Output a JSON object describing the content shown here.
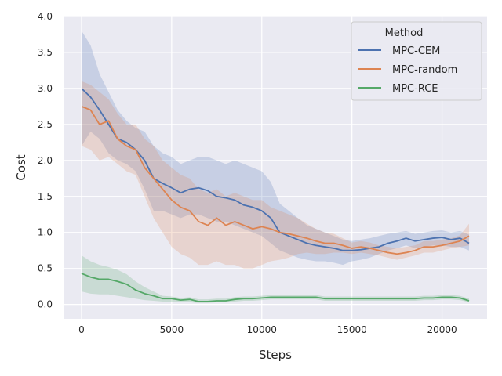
{
  "chart_data": {
    "type": "line",
    "xlabel": "Steps",
    "ylabel": "Cost",
    "xlim": [
      -1000,
      22500
    ],
    "ylim": [
      -0.2,
      4.0
    ],
    "xticks": [
      0,
      5000,
      10000,
      15000,
      20000
    ],
    "yticks": [
      0.0,
      0.5,
      1.0,
      1.5,
      2.0,
      2.5,
      3.0,
      3.5,
      4.0
    ],
    "xtick_labels": [
      "0",
      "5000",
      "10000",
      "15000",
      "20000"
    ],
    "ytick_labels": [
      "0.0",
      "0.5",
      "1.0",
      "1.5",
      "2.0",
      "2.5",
      "3.0",
      "3.5",
      "4.0"
    ],
    "grid": true,
    "legend": {
      "title": "Method",
      "placement": "top-right"
    },
    "series": [
      {
        "name": "MPC-CEM",
        "color": "#4c72b0",
        "x": [
          0,
          500,
          1000,
          1500,
          2000,
          2500,
          3000,
          3500,
          4000,
          4500,
          5000,
          5500,
          6000,
          6500,
          7000,
          7500,
          8000,
          8500,
          9000,
          9500,
          10000,
          10500,
          11000,
          11500,
          12000,
          12500,
          13000,
          13500,
          14000,
          14500,
          15000,
          15500,
          16000,
          16500,
          17000,
          17500,
          18000,
          18500,
          19000,
          19500,
          20000,
          20500,
          21000,
          21500
        ],
        "y": [
          3.0,
          2.88,
          2.7,
          2.5,
          2.3,
          2.25,
          2.15,
          2.0,
          1.75,
          1.68,
          1.62,
          1.55,
          1.6,
          1.62,
          1.58,
          1.5,
          1.48,
          1.45,
          1.38,
          1.35,
          1.3,
          1.2,
          1.0,
          0.95,
          0.9,
          0.85,
          0.82,
          0.8,
          0.78,
          0.75,
          0.75,
          0.76,
          0.78,
          0.8,
          0.85,
          0.88,
          0.92,
          0.88,
          0.9,
          0.92,
          0.93,
          0.9,
          0.92,
          0.85
        ],
        "lower": [
          2.2,
          2.4,
          2.3,
          2.1,
          2.0,
          1.95,
          1.85,
          1.6,
          1.3,
          1.3,
          1.25,
          1.2,
          1.25,
          1.25,
          1.2,
          1.15,
          1.15,
          1.1,
          1.05,
          1.0,
          0.95,
          0.85,
          0.75,
          0.7,
          0.65,
          0.62,
          0.6,
          0.6,
          0.58,
          0.55,
          0.6,
          0.62,
          0.65,
          0.7,
          0.75,
          0.78,
          0.82,
          0.78,
          0.8,
          0.82,
          0.82,
          0.8,
          0.8,
          0.75
        ],
        "upper": [
          3.8,
          3.6,
          3.2,
          2.95,
          2.7,
          2.55,
          2.45,
          2.4,
          2.2,
          2.1,
          2.05,
          1.95,
          2.0,
          2.05,
          2.05,
          2.0,
          1.95,
          2.0,
          1.95,
          1.9,
          1.85,
          1.7,
          1.4,
          1.3,
          1.2,
          1.1,
          1.05,
          1.0,
          0.95,
          0.9,
          0.88,
          0.9,
          0.92,
          0.95,
          0.98,
          1.0,
          1.02,
          0.98,
          1.0,
          1.02,
          1.03,
          1.0,
          1.02,
          0.97
        ]
      },
      {
        "name": "MPC-random",
        "color": "#dd8452",
        "x": [
          0,
          500,
          1000,
          1500,
          2000,
          2500,
          3000,
          3500,
          4000,
          4500,
          5000,
          5500,
          6000,
          6500,
          7000,
          7500,
          8000,
          8500,
          9000,
          9500,
          10000,
          10500,
          11000,
          11500,
          12000,
          12500,
          13000,
          13500,
          14000,
          14500,
          15000,
          15500,
          16000,
          16500,
          17000,
          17500,
          18000,
          18500,
          19000,
          19500,
          20000,
          20500,
          21000,
          21500
        ],
        "y": [
          2.75,
          2.7,
          2.5,
          2.55,
          2.3,
          2.2,
          2.15,
          1.9,
          1.75,
          1.6,
          1.45,
          1.35,
          1.3,
          1.15,
          1.1,
          1.2,
          1.1,
          1.15,
          1.1,
          1.05,
          1.08,
          1.05,
          1.0,
          0.98,
          0.95,
          0.92,
          0.88,
          0.85,
          0.85,
          0.82,
          0.78,
          0.8,
          0.78,
          0.75,
          0.72,
          0.7,
          0.72,
          0.75,
          0.8,
          0.8,
          0.82,
          0.85,
          0.88,
          0.95
        ],
        "lower": [
          2.2,
          2.15,
          2.0,
          2.05,
          1.95,
          1.85,
          1.8,
          1.5,
          1.2,
          1.0,
          0.8,
          0.7,
          0.65,
          0.55,
          0.55,
          0.6,
          0.55,
          0.55,
          0.5,
          0.5,
          0.55,
          0.6,
          0.62,
          0.65,
          0.7,
          0.72,
          0.7,
          0.7,
          0.72,
          0.72,
          0.7,
          0.72,
          0.7,
          0.68,
          0.65,
          0.62,
          0.65,
          0.68,
          0.72,
          0.72,
          0.75,
          0.78,
          0.8,
          0.82
        ],
        "upper": [
          3.1,
          3.05,
          2.95,
          2.85,
          2.65,
          2.5,
          2.5,
          2.3,
          2.2,
          2.0,
          1.9,
          1.8,
          1.75,
          1.6,
          1.55,
          1.6,
          1.5,
          1.55,
          1.5,
          1.45,
          1.45,
          1.35,
          1.3,
          1.25,
          1.2,
          1.12,
          1.05,
          1.0,
          0.98,
          0.92,
          0.86,
          0.88,
          0.86,
          0.82,
          0.8,
          0.78,
          0.8,
          0.82,
          0.88,
          0.88,
          0.9,
          0.92,
          0.96,
          1.12
        ]
      },
      {
        "name": "MPC-RCE",
        "color": "#55a868",
        "x": [
          0,
          500,
          1000,
          1500,
          2000,
          2500,
          3000,
          3500,
          4000,
          4500,
          5000,
          5500,
          6000,
          6500,
          7000,
          7500,
          8000,
          8500,
          9000,
          9500,
          10000,
          10500,
          11000,
          11500,
          12000,
          12500,
          13000,
          13500,
          14000,
          14500,
          15000,
          15500,
          16000,
          16500,
          17000,
          17500,
          18000,
          18500,
          19000,
          19500,
          20000,
          20500,
          21000,
          21500
        ],
        "y": [
          0.43,
          0.38,
          0.35,
          0.35,
          0.32,
          0.28,
          0.2,
          0.15,
          0.12,
          0.08,
          0.08,
          0.06,
          0.07,
          0.04,
          0.04,
          0.05,
          0.05,
          0.07,
          0.08,
          0.08,
          0.09,
          0.1,
          0.1,
          0.1,
          0.1,
          0.1,
          0.1,
          0.08,
          0.08,
          0.08,
          0.08,
          0.08,
          0.08,
          0.08,
          0.08,
          0.08,
          0.08,
          0.08,
          0.09,
          0.09,
          0.1,
          0.1,
          0.09,
          0.05
        ],
        "lower": [
          0.18,
          0.15,
          0.14,
          0.14,
          0.12,
          0.1,
          0.08,
          0.06,
          0.05,
          0.04,
          0.04,
          0.03,
          0.03,
          0.02,
          0.02,
          0.03,
          0.03,
          0.04,
          0.05,
          0.05,
          0.06,
          0.07,
          0.07,
          0.07,
          0.07,
          0.07,
          0.07,
          0.05,
          0.05,
          0.05,
          0.05,
          0.05,
          0.05,
          0.05,
          0.05,
          0.05,
          0.05,
          0.05,
          0.06,
          0.06,
          0.07,
          0.07,
          0.06,
          0.03
        ],
        "upper": [
          0.68,
          0.6,
          0.55,
          0.52,
          0.48,
          0.42,
          0.32,
          0.24,
          0.18,
          0.12,
          0.11,
          0.09,
          0.1,
          0.07,
          0.07,
          0.08,
          0.08,
          0.1,
          0.11,
          0.11,
          0.12,
          0.13,
          0.13,
          0.13,
          0.13,
          0.13,
          0.13,
          0.11,
          0.11,
          0.11,
          0.11,
          0.11,
          0.11,
          0.11,
          0.11,
          0.11,
          0.11,
          0.11,
          0.12,
          0.12,
          0.13,
          0.13,
          0.12,
          0.08
        ]
      }
    ]
  }
}
